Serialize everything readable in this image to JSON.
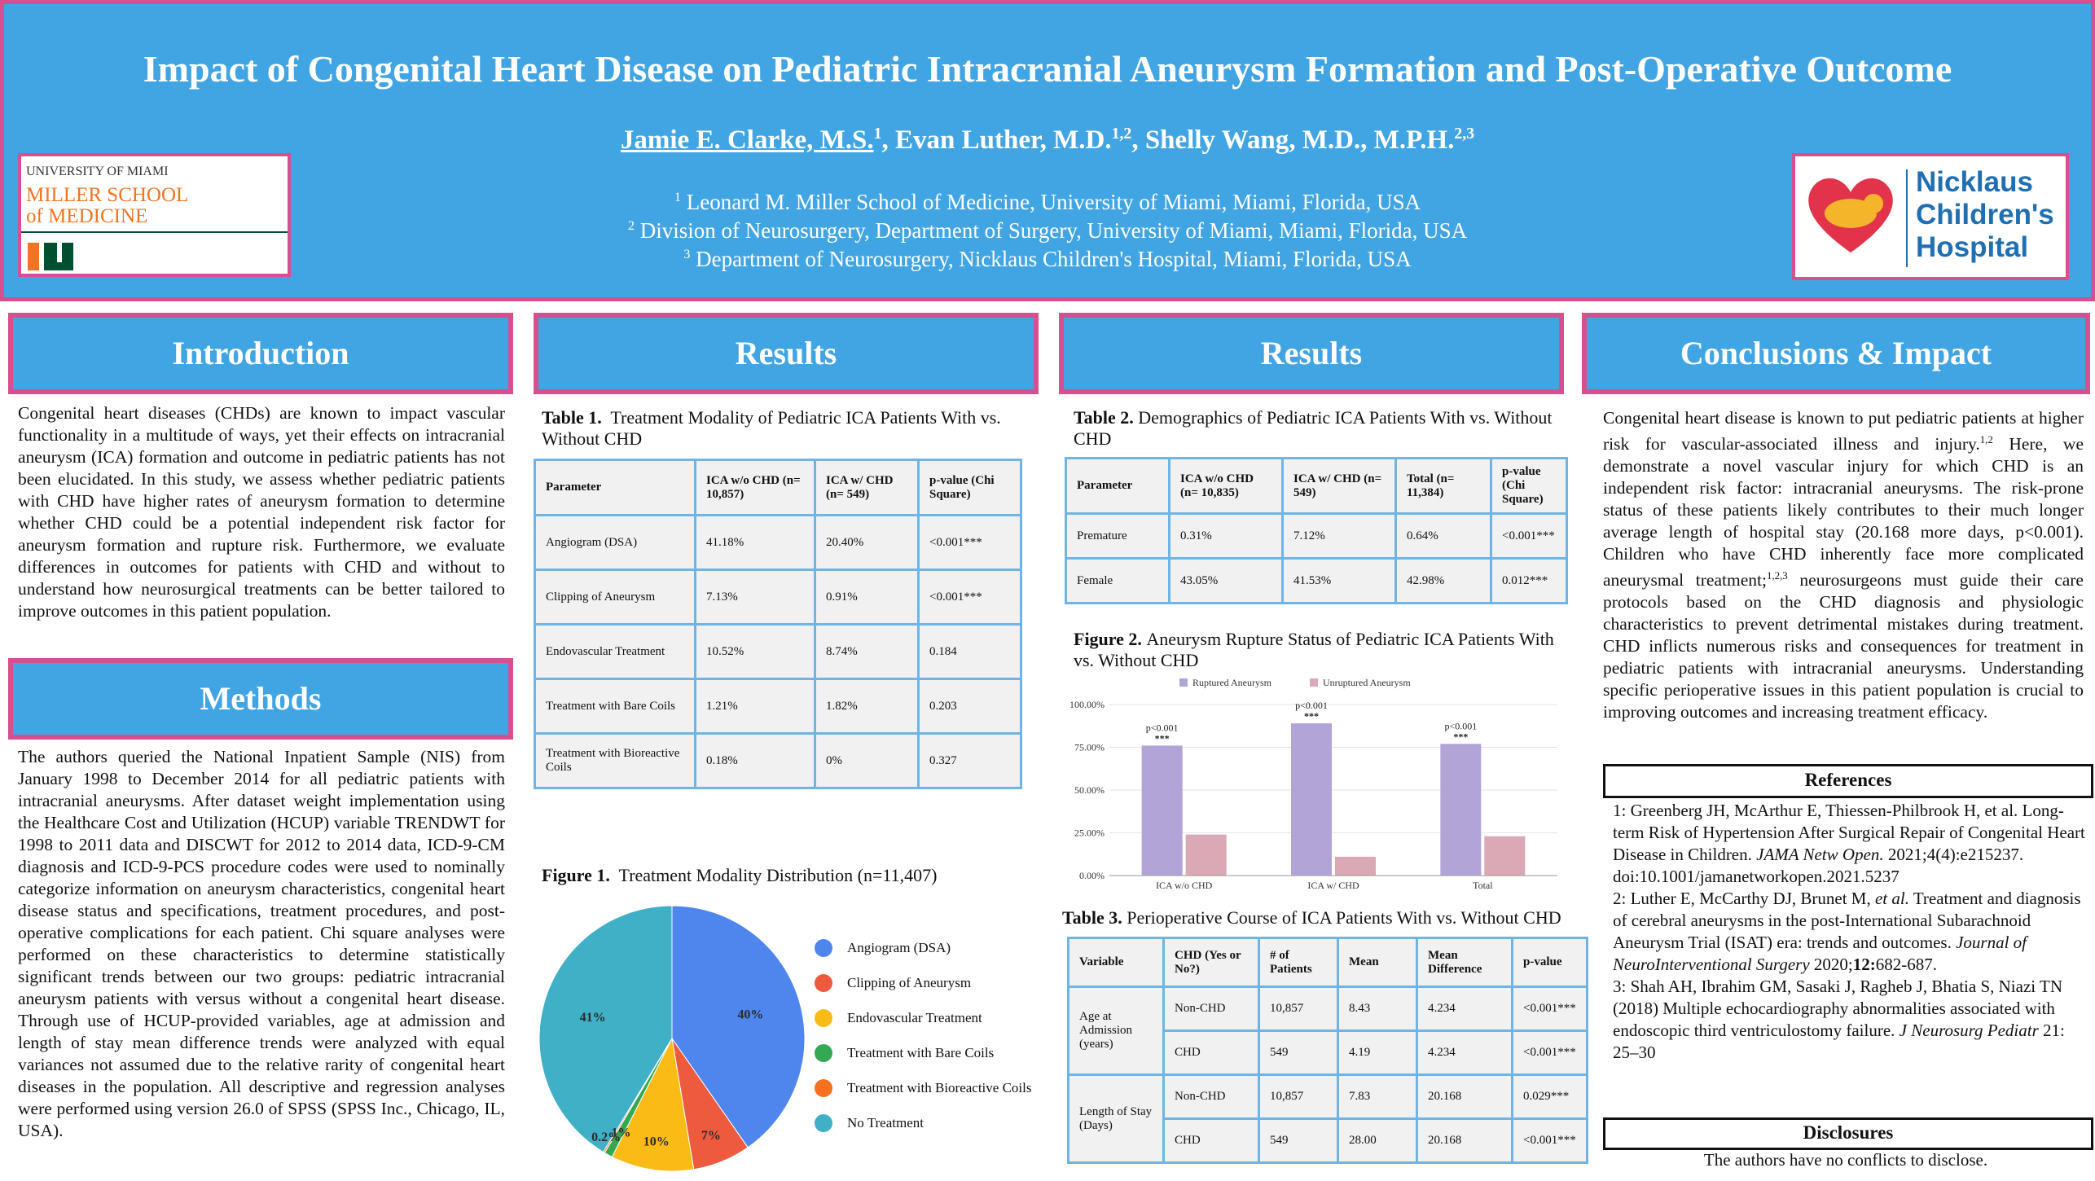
{
  "header": {
    "title": "Impact of Congenital Heart Disease on Pediatric Intracranial Aneurysm Formation and Post-Operative Outcome",
    "author1": "Jamie E. Clarke, M.S.",
    "author1_sup": "1",
    "author2": ", Evan Luther, M.D.",
    "author2_sup": "1,2",
    "author3": ", Shelly Wang, M.D., M.P.H.",
    "author3_sup": "2,3",
    "affiliations": [
      {
        "sup": "1",
        "text": "Leonard M. Miller School of Medicine, University of Miami, Miami, Florida, USA"
      },
      {
        "sup": "2",
        "text": "Division of Neurosurgery, Department of Surgery, University of Miami, Miami, Florida, USA"
      },
      {
        "sup": "3",
        "text": "Department of Neurosurgery, Nicklaus Children's Hospital, Miami, Florida, USA"
      }
    ],
    "logo_left": {
      "line1": "UNIVERSITY OF MIAMI",
      "line2": "MILLER SCHOOL",
      "line3": "of MEDICINE"
    },
    "logo_right": {
      "line1": "Nicklaus",
      "line2": "Children's",
      "line3": "Hospital"
    }
  },
  "sections": {
    "introduction": "Introduction",
    "methods": "Methods",
    "results1": "Results",
    "results2": "Results",
    "conclusions": "Conclusions & Impact"
  },
  "introduction_text": "Congenital heart diseases (CHDs) are known to impact vascular functionality in a multitude of ways, yet their effects on intracranial aneurysm (ICA) formation and outcome in pediatric patients has not been elucidated. In this study, we assess whether pediatric patients with CHD have higher rates of aneurysm formation to determine whether CHD could be a potential independent risk factor for aneurysm formation and rupture risk. Furthermore, we evaluate differences in outcomes for patients with CHD and without to understand how neurosurgical treatments can be better tailored to improve outcomes in this patient population.",
  "methods_text": "The authors queried the National Inpatient Sample (NIS) from January 1998 to December 2014 for all pediatric patients with intracranial aneurysms. After dataset weight implementation using the Healthcare Cost and Utilization (HCUP) variable TRENDWT for 1998 to 2011 data and DISCWT for 2012 to 2014 data, ICD-9-CM diagnosis and ICD-9-PCS procedure codes were used to nominally categorize information on aneurysm characteristics, congenital heart disease status and specifications, treatment procedures, and post-operative complications for each patient. Chi square analyses were performed on these characteristics to determine statistically significant trends between our two groups: pediatric intracranial aneurysm patients with versus without a congenital heart disease. Through use of HCUP-provided variables, age at admission and length of stay mean difference trends were analyzed with equal variances not assumed due to the relative rarity of congenital heart diseases in the population. All descriptive and regression analyses were performed using version 26.0 of SPSS (SPSS Inc., Chicago, IL, USA).",
  "table1": {
    "label": "Table 1.",
    "caption": "Treatment Modality of Pediatric ICA Patients With vs. Without CHD",
    "headers": [
      "Parameter",
      "ICA w/o CHD (n= 10,857)",
      "ICA w/ CHD (n= 549)",
      "p-value (Chi Square)"
    ],
    "rows": [
      [
        "Angiogram (DSA)",
        "41.18%",
        "20.40%",
        "<0.001***"
      ],
      [
        "Clipping of Aneurysm",
        "7.13%",
        "0.91%",
        "<0.001***"
      ],
      [
        "Endovascular Treatment",
        "10.52%",
        "8.74%",
        "0.184"
      ],
      [
        "Treatment with Bare Coils",
        "1.21%",
        "1.82%",
        "0.203"
      ],
      [
        "Treatment with Bioreactive Coils",
        "0.18%",
        "0%",
        "0.327"
      ]
    ]
  },
  "figure1": {
    "label": "Figure 1.",
    "caption": "Treatment Modality Distribution (n=11,407)"
  },
  "table2": {
    "label": "Table 2.",
    "caption": "Demographics of Pediatric ICA Patients With vs. Without CHD",
    "headers": [
      "Parameter",
      "ICA w/o CHD (n= 10,835)",
      "ICA w/ CHD (n= 549)",
      "Total (n= 11,384)",
      "p-value (Chi Square)"
    ],
    "rows": [
      [
        "Premature",
        "0.31%",
        "7.12%",
        "0.64%",
        "<0.001***"
      ],
      [
        "Female",
        "43.05%",
        "41.53%",
        "42.98%",
        "0.012***"
      ]
    ]
  },
  "figure2": {
    "label": "Figure 2.",
    "caption": "Aneurysm Rupture Status of Pediatric ICA Patients With vs. Without CHD"
  },
  "table3": {
    "label": "Table 3.",
    "caption": "Perioperative Course of ICA Patients With vs. Without CHD",
    "headers": [
      "Variable",
      "CHD (Yes or No?)",
      "# of Patients",
      "Mean",
      "Mean Difference",
      "p-value"
    ],
    "groups": [
      {
        "variable": "Age at Admission (years)",
        "rows": [
          [
            "Non-CHD",
            "10,857",
            "8.43",
            "4.234",
            "<0.001***"
          ],
          [
            "CHD",
            "549",
            "4.19",
            "4.234",
            "<0.001***"
          ]
        ]
      },
      {
        "variable": "Length of Stay (Days)",
        "rows": [
          [
            "Non-CHD",
            "10,857",
            "7.83",
            "20.168",
            "0.029***"
          ],
          [
            "CHD",
            "549",
            "28.00",
            "20.168",
            "<0.001***"
          ]
        ]
      }
    ]
  },
  "conclusions": {
    "part1": "Congenital heart disease is known to put pediatric patients at higher risk for vascular-associated illness and injury.",
    "sup1": "1,2",
    "part2": " Here, we demonstrate a novel vascular injury for which CHD is an independent risk factor: intracranial aneurysms. The risk-prone status of these patients likely contributes to their much longer average length of hospital stay (20.168 more days, p<0.001). Children who have CHD inherently face more complicated aneurysmal treatment;",
    "sup2": "1,2,3",
    "part3": " neurosurgeons must guide their care protocols based on the CHD diagnosis and physiologic characteristics to prevent detrimental mistakes during treatment. CHD inflicts numerous risks and consequences for treatment in pediatric patients with intracranial aneurysms. Understanding specific perioperative issues in this patient population is crucial to improving outcomes and increasing treatment efficacy."
  },
  "references": {
    "heading": "References",
    "r1a": "1: Greenberg JH, McArthur E, Thiessen-Philbrook H, et al. Long-term Risk of Hypertension After Surgical Repair of Congenital Heart Disease in Children. ",
    "r1b": "JAMA Netw Open.",
    "r1c": " 2021;4(4):e215237. doi:10.1001/jamanetworkopen.2021.5237",
    "r2a": "2: Luther E, McCarthy DJ, Brunet M, ",
    "r2b": "et al.",
    "r2c": " Treatment and diagnosis of cerebral aneurysms in the post-International Subarachnoid Aneurysm Trial (ISAT) era: trends and outcomes. ",
    "r2d": "Journal of NeuroInterventional Surgery",
    "r2e": " 2020;",
    "r2f": "12:",
    "r2g": "682-687.",
    "r3a": "3: Shah AH, Ibrahim GM, Sasaki J, Ragheb J, Bhatia S, Niazi TN (2018) Multiple echocardiography abnormalities associated with endoscopic third ventriculostomy failure. ",
    "r3b": "J Neurosurg Pediatr",
    "r3c": " 21: 25–30"
  },
  "disclosures": {
    "heading": "Disclosures",
    "text": "The authors have no conflicts to disclose."
  },
  "colors": {
    "header_bg": "#42a5e3",
    "border_pink": "#d64f8e",
    "table_border": "#6eb5e6"
  },
  "chart_data": [
    {
      "type": "pie",
      "title": "Treatment Modality Distribution (n=11,407)",
      "categories": [
        "Angiogram (DSA)",
        "Clipping of Aneurysm",
        "Endovascular Treatment",
        "Treatment with Bare Coils",
        "Treatment with Bioreactive Coils",
        "No Treatment"
      ],
      "values": [
        40,
        7,
        10,
        1,
        0.2,
        41
      ],
      "labels": [
        "40%",
        "7%",
        "10%",
        "1%",
        "0.2%",
        "41%"
      ],
      "colors": [
        "#4e86ee",
        "#ee5a3d",
        "#fbbb17",
        "#35a853",
        "#f9701f",
        "#3fb0c6"
      ],
      "legend_position": "right"
    },
    {
      "type": "bar",
      "title": "Aneurysm Rupture Status of Pediatric ICA Patients With vs. Without CHD",
      "categories": [
        "ICA w/o CHD",
        "ICA w/ CHD",
        "Total"
      ],
      "series": [
        {
          "name": "Ruptured Aneurysm",
          "values": [
            76,
            89,
            77
          ],
          "color": "#b3a4d8"
        },
        {
          "name": "Unruptured Aneurysm",
          "values": [
            24,
            11,
            23
          ],
          "color": "#dba8b6"
        }
      ],
      "ylim": [
        0,
        100
      ],
      "yticks": [
        "0.00%",
        "25.00%",
        "50.00%",
        "75.00%",
        "100.00%"
      ],
      "annotations": [
        "p<0.001 ***",
        "p<0.001 ***",
        "p<0.001 ***"
      ],
      "legend_position": "top"
    }
  ]
}
